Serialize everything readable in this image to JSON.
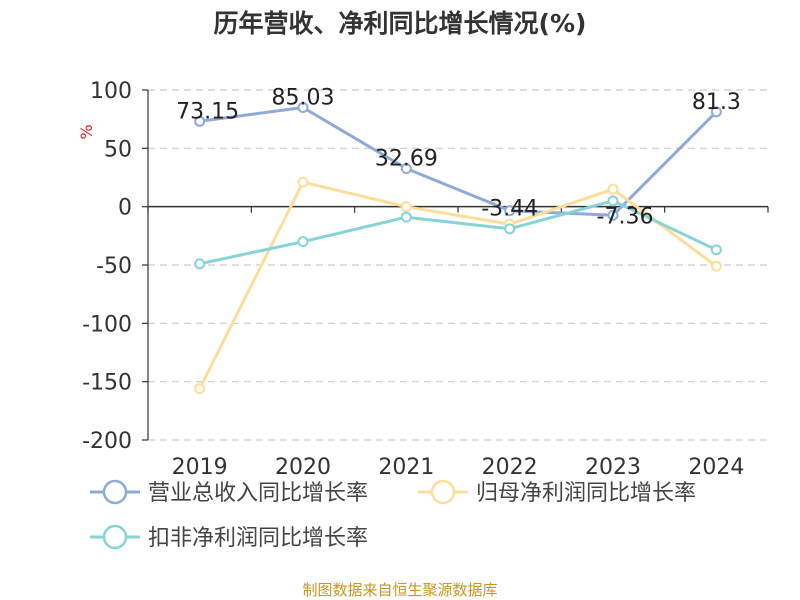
{
  "chart_data": {
    "type": "line",
    "title": "历年营收、净利同比增长情况(%)",
    "unit_label": "%",
    "categories": [
      "2019",
      "2020",
      "2021",
      "2022",
      "2023",
      "2024"
    ],
    "ylim": [
      -200,
      100
    ],
    "yticks": [
      100,
      50,
      0,
      -50,
      -100,
      -150,
      -200
    ],
    "grid": true,
    "legend_position": "bottom",
    "series": [
      {
        "name": "营业总收入同比增长率",
        "color": "#8eaadb",
        "values": [
          73.15,
          85.03,
          32.69,
          -3.44,
          -7.36,
          81.3
        ],
        "data_labels": [
          "73.15",
          "85.03",
          "32.69",
          "-3.44",
          "-7.36",
          "81.3"
        ]
      },
      {
        "name": "归母净利润同比增长率",
        "color": "#fddd9a",
        "values": [
          -156,
          21,
          0,
          -15,
          15,
          -51
        ]
      },
      {
        "name": "扣非净利润同比增长率",
        "color": "#87d4d6",
        "values": [
          -49,
          -30,
          -9,
          -19,
          5,
          -37
        ]
      }
    ]
  },
  "source_text": "制图数据来自恒生聚源数据库"
}
